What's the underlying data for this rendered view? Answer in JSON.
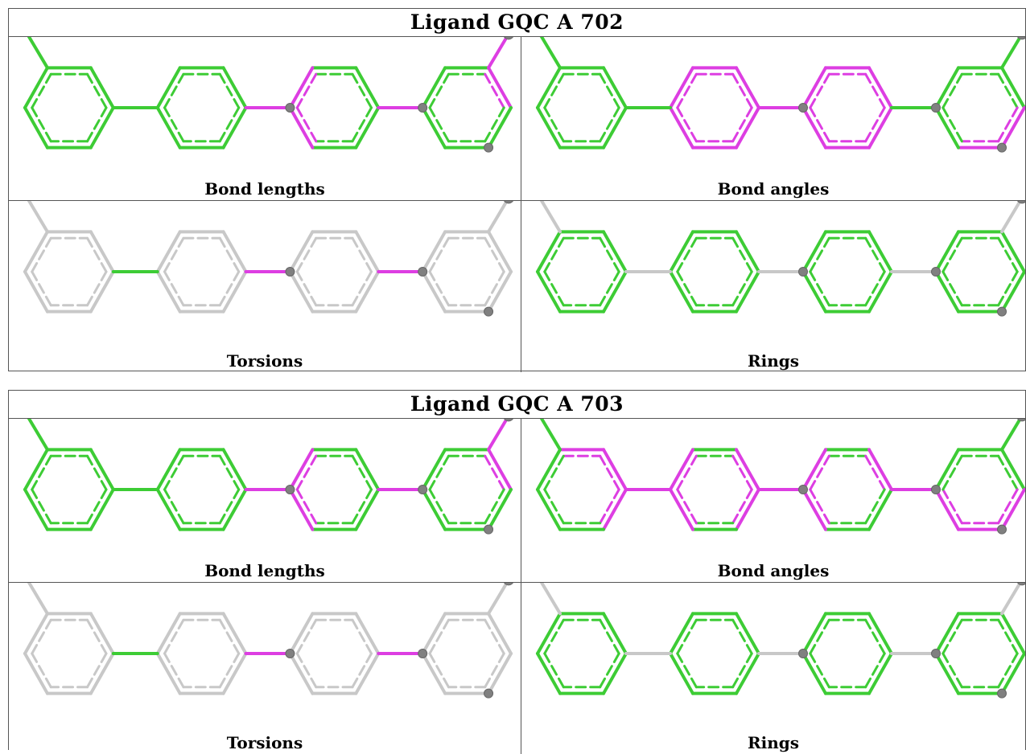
{
  "colors": {
    "green": "#3dcc35",
    "magenta": "#dd3ee2",
    "gray": "#c8c8c8",
    "atom": "#808080"
  },
  "ligands": [
    {
      "title": "Ligand GQC A 702",
      "panels": [
        {
          "label": "Bond lengths",
          "base": "green",
          "links": [
            "green",
            "magenta",
            "magenta"
          ],
          "substituents": {
            "methyl": "green",
            "top": "magenta"
          },
          "ring_edges": [
            [],
            [],
            [
              "upper-left",
              "lower-left"
            ],
            [
              "upper-right"
            ]
          ]
        },
        {
          "label": "Bond angles",
          "base": "green",
          "links": [
            "green",
            "magenta",
            "green"
          ],
          "substituents": {
            "methyl": "green",
            "top": "green"
          },
          "ring_edges": [
            [],
            [
              "all"
            ],
            [
              "all"
            ],
            [
              "lower-right",
              "bottom"
            ]
          ]
        },
        {
          "label": "Torsions",
          "base": "gray",
          "links": [
            "green",
            "magenta",
            "magenta"
          ],
          "substituents": {
            "methyl": "gray",
            "top": "gray"
          },
          "ring_edges": [
            [],
            [],
            [],
            []
          ]
        },
        {
          "label": "Rings",
          "base": "green",
          "links": [
            "gray",
            "gray",
            "gray"
          ],
          "substituents": {
            "methyl": "gray",
            "top": "gray"
          },
          "ring_edges": [
            [],
            [],
            [],
            []
          ]
        }
      ]
    },
    {
      "title": "Ligand GQC A 703",
      "panels": [
        {
          "label": "Bond lengths",
          "base": "green",
          "links": [
            "green",
            "magenta",
            "magenta"
          ],
          "substituents": {
            "methyl": "green",
            "top": "magenta"
          },
          "ring_edges": [
            [],
            [],
            [
              "upper-left",
              "lower-left"
            ],
            [
              "upper-right"
            ]
          ]
        },
        {
          "label": "Bond angles",
          "base": "green",
          "links": [
            "magenta",
            "magenta",
            "magenta"
          ],
          "substituents": {
            "methyl": "green",
            "top": "green"
          },
          "ring_edges": [
            [
              "top",
              "upper-right",
              "lower-right"
            ],
            [
              "upper-left",
              "lower-left",
              "upper-right",
              "lower-right"
            ],
            [
              "upper-left",
              "lower-left",
              "upper-right"
            ],
            [
              "lower-left",
              "bottom",
              "lower-right"
            ]
          ]
        },
        {
          "label": "Torsions",
          "base": "gray",
          "links": [
            "green",
            "magenta",
            "magenta"
          ],
          "substituents": {
            "methyl": "gray",
            "top": "gray"
          },
          "ring_edges": [
            [],
            [],
            [],
            []
          ]
        },
        {
          "label": "Rings",
          "base": "green",
          "links": [
            "gray",
            "gray",
            "gray"
          ],
          "substituents": {
            "methyl": "gray",
            "top": "gray"
          },
          "ring_edges": [
            [],
            [],
            [],
            []
          ]
        }
      ]
    }
  ]
}
